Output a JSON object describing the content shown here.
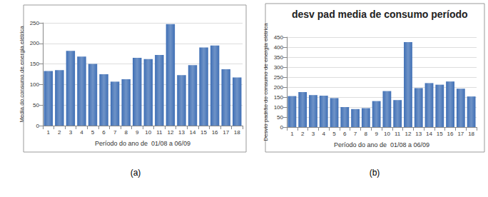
{
  "chart_data": [
    {
      "type": "bar",
      "x_label": "Período do ano de  01/08 a 06/09",
      "y_label": "Media do consumo de energia elétrica",
      "annotations": [
        "(a)"
      ],
      "categories": [
        "1",
        "2",
        "3",
        "4",
        "5",
        "6",
        "7",
        "8",
        "9",
        "10",
        "11",
        "12",
        "13",
        "14",
        "15",
        "16",
        "17",
        "18"
      ],
      "values": [
        133,
        135,
        182,
        168,
        150,
        125,
        107,
        113,
        165,
        162,
        172,
        247,
        123,
        147,
        190,
        195,
        137,
        117
      ],
      "color": "#3f6fb5",
      "ylim": [
        0,
        250
      ],
      "yticks": [
        0,
        50,
        100,
        150,
        200,
        250
      ],
      "grid": true
    },
    {
      "type": "bar",
      "title": "desv pad media de consumo período",
      "x_label": "Período do ano de  01/08 a 06/09",
      "y_label": "Desvio padrão do consumo de energia elétrica",
      "annotations": [
        "(b)"
      ],
      "categories": [
        "1",
        "2",
        "3",
        "4",
        "5",
        "6",
        "7",
        "8",
        "9",
        "10",
        "11",
        "12",
        "13",
        "14",
        "15",
        "16",
        "17",
        "18"
      ],
      "values": [
        155,
        175,
        160,
        157,
        145,
        100,
        90,
        95,
        130,
        180,
        135,
        425,
        195,
        220,
        212,
        228,
        192,
        153
      ],
      "color": "#3f6fb5",
      "ylim": [
        0,
        450
      ],
      "yticks": [
        0,
        50,
        100,
        150,
        200,
        250,
        300,
        350,
        400,
        450
      ],
      "grid": true
    }
  ]
}
